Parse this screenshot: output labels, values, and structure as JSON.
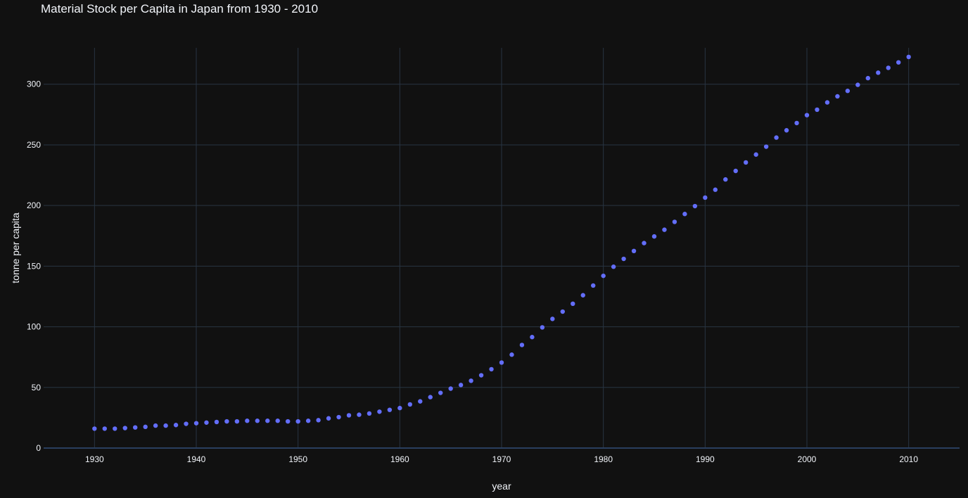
{
  "chart_data": {
    "type": "scatter",
    "title": "Material Stock per Capita in Japan from 1930 - 2010",
    "xlabel": "year",
    "ylabel": "tonne per capita",
    "xlim": [
      1925,
      2015
    ],
    "ylim": [
      0,
      330
    ],
    "xticks": [
      1930,
      1940,
      1950,
      1960,
      1970,
      1980,
      1990,
      2000,
      2010
    ],
    "yticks": [
      0,
      50,
      100,
      150,
      200,
      250,
      300
    ],
    "grid": true,
    "colors": {
      "background": "#111111",
      "grid": "#283442",
      "zeroline": "#2a3f5f",
      "marker": "#636efa",
      "text": "#f2f5fa"
    },
    "series": [
      {
        "x": [
          1930,
          1931,
          1932,
          1933,
          1934,
          1935,
          1936,
          1937,
          1938,
          1939,
          1940,
          1941,
          1942,
          1943,
          1944,
          1945,
          1946,
          1947,
          1948,
          1949,
          1950,
          1951,
          1952,
          1953,
          1954,
          1955,
          1956,
          1957,
          1958,
          1959,
          1960,
          1961,
          1962,
          1963,
          1964,
          1965,
          1966,
          1967,
          1968,
          1969,
          1970,
          1971,
          1972,
          1973,
          1974,
          1975,
          1976,
          1977,
          1978,
          1979,
          1980,
          1981,
          1982,
          1983,
          1984,
          1985,
          1986,
          1987,
          1988,
          1989,
          1990,
          1991,
          1992,
          1993,
          1994,
          1995,
          1996,
          1997,
          1998,
          1999,
          2000,
          2001,
          2002,
          2003,
          2004,
          2005,
          2006,
          2007,
          2008,
          2009,
          2010
        ],
        "y": [
          16,
          16,
          16,
          16.5,
          17,
          17.5,
          18.5,
          18.5,
          19,
          20,
          20.5,
          21,
          21.5,
          22,
          22,
          22.5,
          22.5,
          22.5,
          22.5,
          22,
          22,
          22.5,
          23,
          24.5,
          25.5,
          27,
          27.5,
          28.5,
          30,
          31.5,
          33,
          36,
          38.5,
          42,
          45.5,
          49,
          52,
          55.5,
          60,
          65,
          70.5,
          77,
          85,
          91.5,
          99.5,
          106.5,
          112.5,
          119,
          126,
          134,
          142,
          149.5,
          156,
          162.5,
          169,
          174.5,
          180,
          186.5,
          193,
          199.5,
          206.5,
          213,
          221.5,
          228.5,
          235.5,
          242,
          248.5,
          256,
          262,
          268,
          274.5,
          279,
          285,
          290,
          294.5,
          299.5,
          305,
          309.5,
          313.5,
          318,
          322.5
        ]
      }
    ]
  }
}
